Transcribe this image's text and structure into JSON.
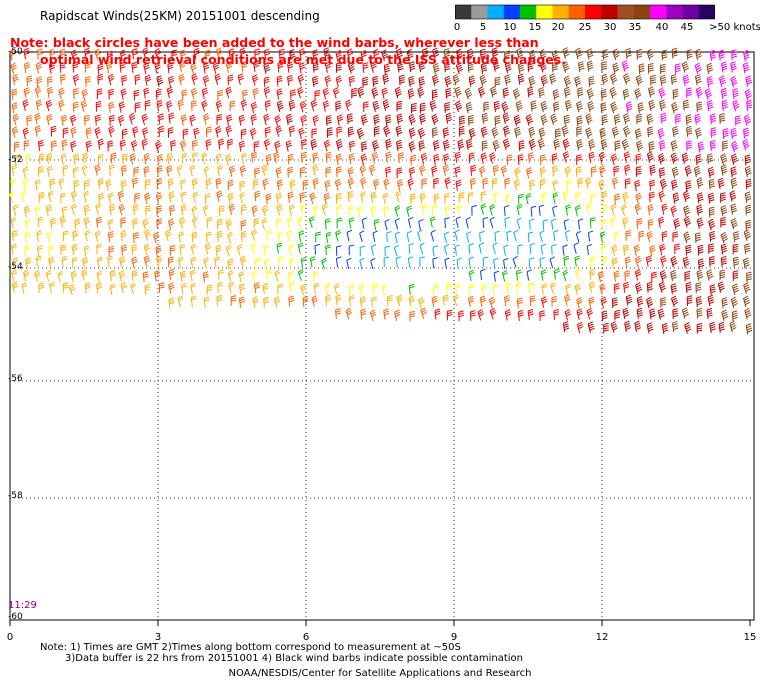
{
  "header": {
    "title": "Rapidscat Winds(25KM) 20151001 descending"
  },
  "colorbar": {
    "labels": [
      "0",
      "5",
      "10",
      "15",
      "20",
      "25",
      "30",
      "35",
      "40",
      "45",
      ">50 knots"
    ],
    "colors": [
      "#3a3a3a",
      "#9a9a9a",
      "#00b0ff",
      "#0040ff",
      "#00c000",
      "#ffff00",
      "#ffb000",
      "#ff6000",
      "#ff0000",
      "#c00000",
      "#a05020",
      "#8b4513",
      "#ff00ff",
      "#a000c0",
      "#7000a0",
      "#2a0060"
    ]
  },
  "note": {
    "line1": "Note: black circles have been added to the wind barbs, wherever less than",
    "line2": "optimal wind retrieval conditions are met due to the ISS attitude changes."
  },
  "time_label": "11:29",
  "map": {
    "x_ticks": [
      "0",
      "3",
      "6",
      "9",
      "12",
      "15"
    ],
    "y_ticks": [
      "-50",
      "-52",
      "-54",
      "-56",
      "-58",
      "-60"
    ],
    "lon_range": [
      0,
      15
    ],
    "lat_range": [
      -50,
      -60
    ]
  },
  "footnotes": {
    "line1": "Note: 1) Times are GMT 2)Times along bottom correspond to measurement at ~50S",
    "line2": "3)Data buffer is 22 hrs from 20151001 4) Black wind barbs indicate possible contamination"
  },
  "credit": "NOAA/NESDIS/Center for Satellite Applications and Research"
}
